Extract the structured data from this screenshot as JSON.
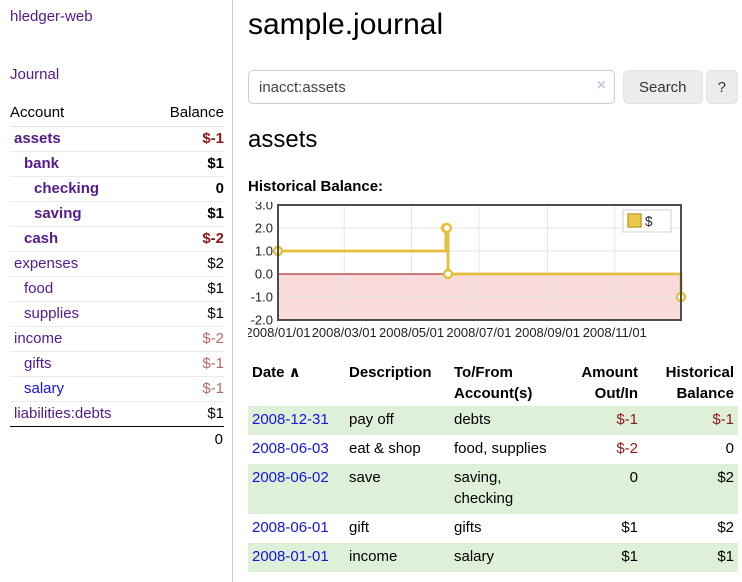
{
  "app": {
    "title": "hledger-web",
    "nav_journal": "Journal"
  },
  "colors": {
    "link_purple": "#551a8b",
    "link_blue": "#1414dc",
    "negative_strong": "#8b1a1a",
    "negative_soft": "#b36a6a",
    "stripe_green": "#dff0d8"
  },
  "sidebar": {
    "header": {
      "account": "Account",
      "balance": "Balance"
    },
    "accounts": [
      {
        "name": "assets",
        "depth": 0,
        "bold": true,
        "link": "purple",
        "balance": "$-1",
        "bal_class": "neg-strong"
      },
      {
        "name": "bank",
        "depth": 1,
        "bold": true,
        "link": "purple",
        "balance": "$1",
        "bal_class": "pos-strong"
      },
      {
        "name": "checking",
        "depth": 2,
        "bold": true,
        "link": "purple",
        "balance": "0",
        "bal_class": "pos-strong"
      },
      {
        "name": "saving",
        "depth": 2,
        "bold": true,
        "link": "purple",
        "balance": "$1",
        "bal_class": "pos-strong"
      },
      {
        "name": "cash",
        "depth": 1,
        "bold": true,
        "link": "purple",
        "balance": "$-2",
        "bal_class": "neg-strong"
      },
      {
        "name": "expenses",
        "depth": 0,
        "bold": false,
        "link": "purple",
        "balance": "$2",
        "bal_class": "pos"
      },
      {
        "name": "food",
        "depth": 1,
        "bold": false,
        "link": "purple",
        "balance": "$1",
        "bal_class": "pos"
      },
      {
        "name": "supplies",
        "depth": 1,
        "bold": false,
        "link": "purple",
        "balance": "$1",
        "bal_class": "pos"
      },
      {
        "name": "income",
        "depth": 0,
        "bold": false,
        "link": "purple",
        "balance": "$-2",
        "bal_class": "neg-soft"
      },
      {
        "name": "gifts",
        "depth": 1,
        "bold": false,
        "link": "purple",
        "balance": "$-1",
        "bal_class": "neg-soft"
      },
      {
        "name": "salary",
        "depth": 1,
        "bold": false,
        "link": "blue",
        "balance": "$-1",
        "bal_class": "neg-soft"
      },
      {
        "name": "liabilities:debts",
        "depth": 0,
        "bold": false,
        "link": "purple",
        "balance": "$1",
        "bal_class": "pos"
      }
    ],
    "total": "0"
  },
  "header": {
    "title": "sample.journal"
  },
  "search": {
    "value": "inacct:assets",
    "clear_icon": "×",
    "button_label": "Search",
    "help_label": "?"
  },
  "main": {
    "account_title": "assets"
  },
  "chart_data": {
    "type": "line",
    "step": true,
    "title": "Historical Balance:",
    "x_domain": [
      "2008-01-01",
      "2008-12-31"
    ],
    "ylim": [
      -2,
      3
    ],
    "y_ticks": [
      "3.0",
      "2.0",
      "1.0",
      "0.0",
      "-1.0",
      "-2.0"
    ],
    "x_ticks": [
      "2008/01/01",
      "2008/03/01",
      "2008/05/01",
      "2008/07/01",
      "2008/09/01",
      "2008/11/01"
    ],
    "series": [
      {
        "name": "$",
        "points": [
          {
            "x": "2008-01-01",
            "y": 1
          },
          {
            "x": "2008-06-01",
            "y": 2
          },
          {
            "x": "2008-06-02",
            "y": 2
          },
          {
            "x": "2008-06-03",
            "y": 0
          },
          {
            "x": "2008-12-31",
            "y": -1
          }
        ]
      }
    ],
    "legend": {
      "label": "$",
      "position": "top-right"
    },
    "colors": {
      "line": "#e5bf3c",
      "marker_fill": "#ffffff",
      "legend_square": "#ecc84a",
      "legend_square_border": "#c5a236",
      "negative_region": "#f9dbdb",
      "zero_line": "#a40000",
      "grid": "#e6e6e6",
      "border": "#4d4d4d"
    }
  },
  "table": {
    "sort_icon": "∧",
    "headers": [
      {
        "lines": [
          "Date"
        ],
        "align": "left",
        "sorted": true
      },
      {
        "lines": [
          "Description"
        ],
        "align": "left"
      },
      {
        "lines": [
          "To/From",
          "Account(s)"
        ],
        "align": "left"
      },
      {
        "lines": [
          "Amount",
          "Out/In"
        ],
        "align": "right"
      },
      {
        "lines": [
          "Historical",
          "Balance"
        ],
        "align": "right"
      }
    ],
    "rows": [
      {
        "date": "2008-12-31",
        "description": "pay off",
        "accounts": "debts",
        "amount": "$-1",
        "amount_neg": true,
        "balance": "$-1",
        "balance_neg": true
      },
      {
        "date": "2008-06-03",
        "description": "eat & shop",
        "accounts": "food, supplies",
        "amount": "$-2",
        "amount_neg": true,
        "balance": "0",
        "balance_neg": false
      },
      {
        "date": "2008-06-02",
        "description": "save",
        "accounts": "saving, checking",
        "amount": "0",
        "amount_neg": false,
        "balance": "$2",
        "balance_neg": false
      },
      {
        "date": "2008-06-01",
        "description": "gift",
        "accounts": "gifts",
        "amount": "$1",
        "amount_neg": false,
        "balance": "$2",
        "balance_neg": false
      },
      {
        "date": "2008-01-01",
        "description": "income",
        "accounts": "salary",
        "amount": "$1",
        "amount_neg": false,
        "balance": "$1",
        "balance_neg": false
      }
    ]
  }
}
